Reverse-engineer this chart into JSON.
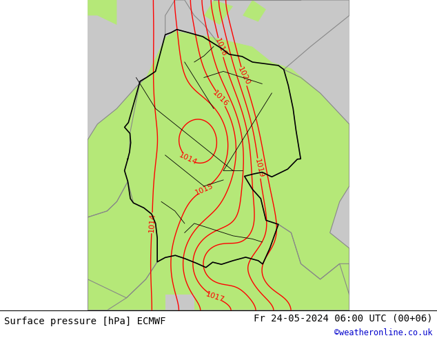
{
  "title_left": "Surface pressure [hPa] ECMWF",
  "title_right": "Fr 24-05-2024 06:00 UTC (00+06)",
  "watermark": "©weatheronline.co.uk",
  "bg_green": "#b5e878",
  "bg_gray": "#c8c8c8",
  "contour_color_red": "#ff0000",
  "contour_color_gray": "#888888",
  "border_color_black": "#000000",
  "border_color_gray": "#888888",
  "label_fontsize": 8,
  "title_fontsize": 10,
  "watermark_color": "#0000cc",
  "figsize": [
    6.34,
    4.9
  ],
  "dpi": 100,
  "xlim": [
    4.0,
    17.5
  ],
  "ylim": [
    46.0,
    56.0
  ],
  "pressure_levels": [
    1014,
    1015,
    1016,
    1017,
    1018,
    1019,
    1020
  ]
}
